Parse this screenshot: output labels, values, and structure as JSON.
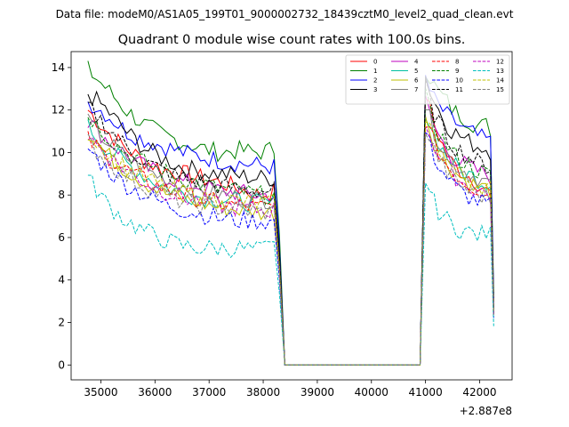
{
  "chart_data": {
    "type": "line",
    "suptitle": "Data file: modeM0/AS1A05_199T01_9000002732_18439cztM0_level2_quad_clean.evt",
    "title": "Quadrant 0 module wise count rates with 100.0s bins.",
    "xlabel": "",
    "ylabel": "",
    "x_offset_label": "+2.887e8",
    "xlim": [
      34450,
      42600
    ],
    "ylim": [
      -0.7,
      14.75
    ],
    "xticks": [
      35000,
      36000,
      37000,
      38000,
      39000,
      40000,
      41000,
      42000
    ],
    "xtick_labels": [
      "35000",
      "36000",
      "37000",
      "38000",
      "39000",
      "40000",
      "41000",
      "42000"
    ],
    "yticks": [
      0,
      2,
      4,
      6,
      8,
      10,
      12,
      14
    ],
    "ytick_labels": [
      "0",
      "2",
      "4",
      "6",
      "8",
      "10",
      "12",
      "14"
    ],
    "gap": [
      38400,
      40900
    ],
    "segments": [
      [
        34760,
        38260
      ],
      [
        41000,
        42240
      ]
    ],
    "legend_position": "top-right",
    "legend_columns": 4,
    "series": [
      {
        "name": "0",
        "color": "#ff0000",
        "dash": "solid",
        "seg1": [
          12.0,
          11.0,
          10.2,
          9.6,
          9.2,
          9.0,
          8.8,
          8.6,
          8.3,
          8.0,
          8.2
        ],
        "seg2": [
          12.8,
          11.6,
          10.8,
          10.0,
          9.5,
          9.2,
          9.0,
          8.8,
          8.5,
          8.2,
          8.0
        ]
      },
      {
        "name": "1",
        "color": "#008000",
        "dash": "solid",
        "seg1": [
          13.9,
          13.0,
          12.0,
          11.3,
          10.8,
          10.5,
          10.2,
          10.0,
          10.1,
          10.0,
          10.2
        ],
        "seg2": [
          14.0,
          13.3,
          12.8,
          12.5,
          12.0,
          11.8,
          11.6,
          11.4,
          11.2,
          11.3,
          11.0
        ]
      },
      {
        "name": "2",
        "color": "#0000ff",
        "dash": "solid",
        "seg1": [
          12.4,
          11.8,
          11.0,
          10.6,
          10.3,
          10.0,
          9.8,
          9.6,
          9.5,
          9.4,
          9.3
        ],
        "seg2": [
          13.5,
          12.6,
          12.2,
          11.8,
          11.5,
          11.3,
          11.0,
          10.9,
          10.7,
          10.6,
          10.4
        ]
      },
      {
        "name": "3",
        "color": "#000000",
        "dash": "solid",
        "seg1": [
          12.8,
          12.0,
          11.0,
          10.2,
          9.7,
          9.3,
          9.1,
          9.0,
          8.9,
          8.8,
          8.8
        ],
        "seg2": [
          13.6,
          12.6,
          12.0,
          11.4,
          11.0,
          10.8,
          10.6,
          10.4,
          10.3,
          10.2,
          10.0
        ]
      },
      {
        "name": "4",
        "color": "#bf00bf",
        "dash": "solid",
        "seg1": [
          11.5,
          10.6,
          9.9,
          9.3,
          8.9,
          8.6,
          8.4,
          8.2,
          8.1,
          8.0,
          8.0
        ],
        "seg2": [
          12.4,
          11.4,
          10.8,
          10.2,
          9.8,
          9.6,
          9.4,
          9.2,
          9.1,
          9.0,
          8.8
        ]
      },
      {
        "name": "5",
        "color": "#00bfa0",
        "dash": "solid",
        "seg1": [
          11.2,
          10.2,
          9.5,
          8.9,
          8.4,
          8.1,
          7.9,
          7.8,
          7.7,
          7.6,
          7.6
        ],
        "seg2": [
          12.0,
          11.0,
          10.4,
          9.9,
          9.5,
          9.2,
          9.0,
          8.9,
          8.7,
          8.6,
          8.5
        ]
      },
      {
        "name": "6",
        "color": "#bfbf00",
        "dash": "solid",
        "seg1": [
          11.0,
          9.9,
          9.2,
          8.6,
          8.1,
          7.8,
          7.6,
          7.4,
          7.3,
          7.2,
          7.2
        ],
        "seg2": [
          11.8,
          10.7,
          10.1,
          9.6,
          9.2,
          8.9,
          8.7,
          8.5,
          8.4,
          8.3,
          8.2
        ]
      },
      {
        "name": "7",
        "color": "#808080",
        "dash": "solid",
        "seg1": [
          11.4,
          10.5,
          9.8,
          9.2,
          8.8,
          8.5,
          8.2,
          8.0,
          7.9,
          7.8,
          7.8
        ],
        "seg2": [
          12.2,
          11.2,
          10.6,
          10.0,
          9.6,
          9.3,
          9.1,
          8.9,
          8.8,
          8.6,
          8.5
        ]
      },
      {
        "name": "8",
        "color": "#ff0000",
        "dash": "dashed",
        "seg1": [
          10.6,
          9.8,
          9.2,
          8.7,
          8.3,
          8.0,
          7.8,
          7.6,
          7.5,
          7.4,
          7.4
        ],
        "seg2": [
          11.6,
          10.6,
          10.0,
          9.5,
          9.1,
          8.8,
          8.6,
          8.4,
          8.3,
          8.2,
          8.0
        ]
      },
      {
        "name": "9",
        "color": "#008000",
        "dash": "dashed",
        "seg1": [
          11.8,
          10.8,
          10.0,
          9.5,
          9.1,
          8.8,
          8.5,
          8.3,
          8.2,
          8.0,
          8.0
        ],
        "seg2": [
          12.6,
          11.5,
          10.9,
          10.4,
          10.0,
          9.7,
          9.5,
          9.3,
          9.1,
          9.0,
          8.8
        ]
      },
      {
        "name": "10",
        "color": "#0000ff",
        "dash": "dashed",
        "seg1": [
          10.2,
          9.2,
          8.5,
          8.0,
          7.6,
          7.3,
          7.1,
          6.9,
          6.8,
          6.8,
          6.7
        ],
        "seg2": [
          11.0,
          10.0,
          9.4,
          8.9,
          8.5,
          8.2,
          8.0,
          7.8,
          7.7,
          7.6,
          7.4
        ]
      },
      {
        "name": "11",
        "color": "#000000",
        "dash": "dashed",
        "seg1": [
          12.2,
          11.2,
          10.3,
          9.6,
          9.1,
          8.8,
          8.6,
          8.4,
          8.3,
          8.2,
          8.2
        ],
        "seg2": [
          13.2,
          12.0,
          11.4,
          10.8,
          10.4,
          10.1,
          9.9,
          9.7,
          9.5,
          9.4,
          9.2
        ]
      },
      {
        "name": "12",
        "color": "#bf00bf",
        "dash": "dashed",
        "seg1": [
          10.8,
          9.9,
          9.2,
          8.6,
          8.2,
          7.9,
          7.7,
          7.5,
          7.4,
          7.3,
          7.3
        ],
        "seg2": [
          11.5,
          10.5,
          9.9,
          9.4,
          9.0,
          8.7,
          8.5,
          8.3,
          8.2,
          8.1,
          8.0
        ]
      },
      {
        "name": "13",
        "color": "#00bfbf",
        "dash": "dashed",
        "seg1": [
          8.8,
          7.6,
          6.8,
          6.3,
          5.9,
          5.6,
          5.5,
          5.5,
          5.5,
          5.4,
          5.6
        ],
        "seg2": [
          8.8,
          7.8,
          7.2,
          6.9,
          6.6,
          6.4,
          6.3,
          6.2,
          6.1,
          6.2,
          6.1
        ]
      },
      {
        "name": "14",
        "color": "#bfbf00",
        "dash": "dashed",
        "seg1": [
          11.0,
          10.0,
          9.3,
          8.8,
          8.4,
          8.1,
          7.9,
          7.8,
          7.7,
          7.6,
          7.6
        ],
        "seg2": [
          11.8,
          10.8,
          10.2,
          9.7,
          9.3,
          9.0,
          8.8,
          8.6,
          8.5,
          8.4,
          8.3
        ]
      },
      {
        "name": "15",
        "color": "#808080",
        "dash": "dashed",
        "seg1": [
          10.5,
          9.6,
          8.9,
          8.4,
          8.0,
          7.7,
          7.5,
          7.4,
          7.3,
          7.2,
          7.2
        ],
        "seg2": [
          11.2,
          10.3,
          9.7,
          9.2,
          8.8,
          8.5,
          8.3,
          8.1,
          8.0,
          7.9,
          7.8
        ]
      }
    ]
  }
}
